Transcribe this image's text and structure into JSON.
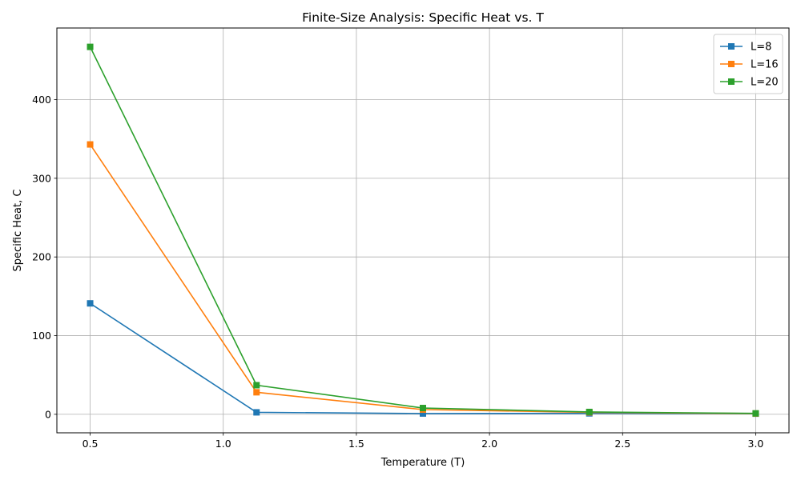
{
  "chart_data": {
    "type": "line",
    "title": "Finite-Size Analysis: Specific Heat vs. T",
    "xlabel": "Temperature (T)",
    "ylabel": "Specific Heat, C",
    "x": [
      0.5,
      1.125,
      1.75,
      2.375,
      3.0
    ],
    "xlim": [
      0.375,
      3.125
    ],
    "ylim": [
      -23.5,
      491
    ],
    "xticks": [
      0.5,
      1.0,
      1.5,
      2.0,
      2.5,
      3.0
    ],
    "xtick_labels": [
      "0.5",
      "1.0",
      "1.5",
      "2.0",
      "2.5",
      "3.0"
    ],
    "yticks": [
      0,
      100,
      200,
      300,
      400
    ],
    "ytick_labels": [
      "0",
      "100",
      "200",
      "300",
      "400"
    ],
    "grid": true,
    "legend_position": "top-right",
    "marker": "square",
    "series": [
      {
        "name": "L=8",
        "color": "#1f77b4",
        "values": [
          141,
          2.5,
          1.0,
          1.2,
          0.8
        ]
      },
      {
        "name": "L=16",
        "color": "#ff7f0e",
        "values": [
          343,
          28,
          6,
          2.5,
          1.0
        ]
      },
      {
        "name": "L=20",
        "color": "#2ca02c",
        "values": [
          467,
          37,
          8,
          3.0,
          1.2
        ]
      }
    ]
  }
}
